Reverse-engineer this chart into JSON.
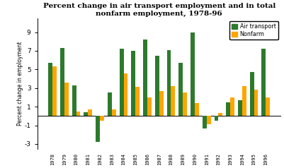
{
  "years": [
    1978,
    1979,
    1980,
    1981,
    1982,
    1983,
    1984,
    1985,
    1986,
    1987,
    1988,
    1989,
    1990,
    1991,
    1992,
    1993,
    1994,
    1995,
    1996
  ],
  "air_transport": [
    5.7,
    7.3,
    3.3,
    0.4,
    -2.8,
    2.5,
    7.2,
    7.0,
    8.2,
    6.5,
    7.1,
    5.7,
    9.0,
    -1.3,
    -0.5,
    1.5,
    1.7,
    4.7,
    7.2
  ],
  "nonfarm": [
    5.3,
    3.6,
    0.5,
    0.7,
    -0.5,
    0.7,
    4.6,
    3.1,
    2.0,
    2.7,
    3.2,
    2.5,
    1.4,
    -0.9,
    0.3,
    2.0,
    3.2,
    2.8,
    2.0
  ],
  "air_color": "#2d7a2d",
  "nonfarm_color": "#ffa500",
  "title_line1": "Percent change in air transport employment and in total",
  "title_line2": "nonfarm employment, 1978-96",
  "ylabel": "Percent change in employment",
  "ylim": [
    -3.5,
    10.5
  ],
  "yticks": [
    -3,
    -1,
    1,
    3,
    5,
    7,
    9
  ],
  "ytick_labels": [
    "-3",
    "-1",
    "1",
    "3",
    "5",
    "7",
    "9"
  ],
  "plot_bg": "#ffffff",
  "fig_bg": "#ffffff",
  "legend_air": "Air transport",
  "legend_nonfarm": "Nonfarm"
}
